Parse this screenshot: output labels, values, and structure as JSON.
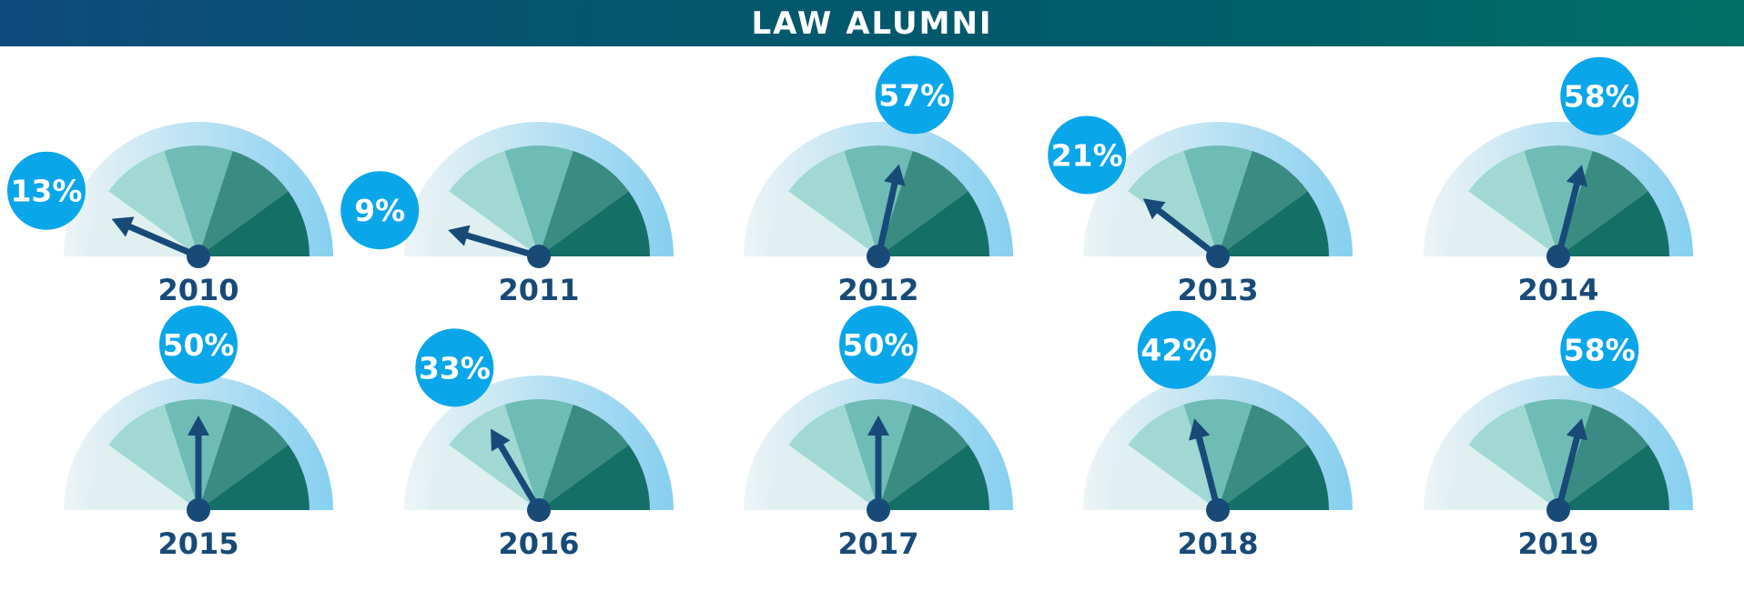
{
  "header": {
    "title": "LAW ALUMNI"
  },
  "colors": {
    "banner_start": "#0f4a7c",
    "banner_end": "#007166",
    "needle": "#184a78",
    "badge": "#09a6ea",
    "outer_ring": "#8fd2f2",
    "segments": [
      "#e0f0f1",
      "#a2d8d3",
      "#6fbcb6",
      "#3a8b82",
      "#146f67"
    ]
  },
  "chart_data": {
    "type": "gauge",
    "title": "LAW ALUMNI",
    "unit": "%",
    "range": [
      0,
      100
    ],
    "gauges": [
      {
        "year": "2010",
        "value": 13,
        "label": "13%"
      },
      {
        "year": "2011",
        "value": 9,
        "label": "9%"
      },
      {
        "year": "2012",
        "value": 57,
        "label": "57%"
      },
      {
        "year": "2013",
        "value": 21,
        "label": "21%"
      },
      {
        "year": "2014",
        "value": 58,
        "label": "58%"
      },
      {
        "year": "2015",
        "value": 50,
        "label": "50%"
      },
      {
        "year": "2016",
        "value": 33,
        "label": "33%"
      },
      {
        "year": "2017",
        "value": 50,
        "label": "50%"
      },
      {
        "year": "2018",
        "value": 42,
        "label": "42%"
      },
      {
        "year": "2019",
        "value": 58,
        "label": "58%"
      }
    ]
  }
}
